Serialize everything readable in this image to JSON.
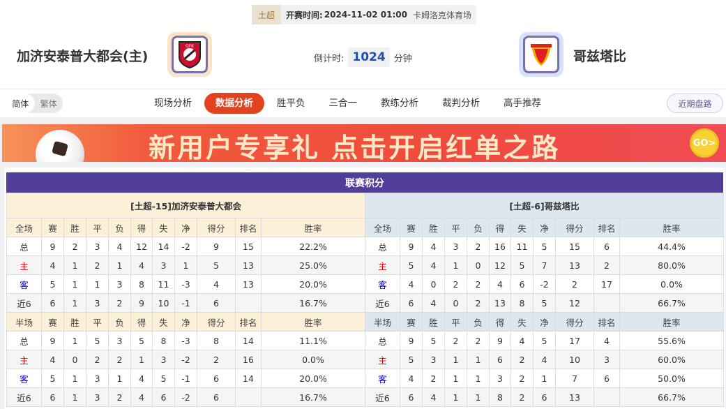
{
  "match": {
    "league": "土超",
    "time_label": "开赛时间:",
    "time": "2024-11-02 01:00",
    "venue": "卡姆洛克体育场"
  },
  "home_team": {
    "name": "加济安泰普大都会(主)",
    "logo": "gaziantep-fk-logo"
  },
  "away_team": {
    "name": "哥兹塔比",
    "logo": "goztepe-logo"
  },
  "countdown": {
    "label": "倒计时:",
    "value": "1024",
    "unit": "分钟"
  },
  "lang": {
    "simplified": "简体",
    "traditional": "繁体"
  },
  "nav": [
    "现场分析",
    "数据分析",
    "胜平负",
    "三合一",
    "教练分析",
    "裁判分析",
    "高手推荐"
  ],
  "nav_active": 1,
  "recent_button": "近期盘路",
  "banner": {
    "text": "新用户专享礼 点击开启红单之路",
    "go": "GO>"
  },
  "standings": {
    "title": "联赛积分",
    "columns_full": [
      "全场",
      "赛",
      "胜",
      "平",
      "负",
      "得",
      "失",
      "净",
      "得分",
      "排名",
      "胜率"
    ],
    "columns_half": [
      "半场",
      "赛",
      "胜",
      "平",
      "负",
      "得",
      "失",
      "净",
      "得分",
      "排名",
      "胜率"
    ],
    "home": {
      "header": "[土超-15]加济安泰普大都会",
      "full": [
        [
          "总",
          "9",
          "2",
          "3",
          "4",
          "12",
          "14",
          "-2",
          "9",
          "15",
          "22.2%"
        ],
        [
          "主",
          "4",
          "1",
          "2",
          "1",
          "4",
          "3",
          "1",
          "5",
          "13",
          "25.0%"
        ],
        [
          "客",
          "5",
          "1",
          "1",
          "3",
          "8",
          "11",
          "-3",
          "4",
          "13",
          "20.0%"
        ],
        [
          "近6",
          "6",
          "1",
          "3",
          "2",
          "9",
          "10",
          "-1",
          "6",
          "",
          "16.7%"
        ]
      ],
      "half": [
        [
          "总",
          "9",
          "1",
          "5",
          "3",
          "5",
          "8",
          "-3",
          "8",
          "14",
          "11.1%"
        ],
        [
          "主",
          "4",
          "0",
          "2",
          "2",
          "1",
          "3",
          "-2",
          "2",
          "16",
          "0.0%"
        ],
        [
          "客",
          "5",
          "1",
          "3",
          "1",
          "4",
          "5",
          "-1",
          "6",
          "14",
          "20.0%"
        ],
        [
          "近6",
          "6",
          "1",
          "3",
          "2",
          "4",
          "6",
          "-2",
          "6",
          "",
          "16.7%"
        ]
      ]
    },
    "away": {
      "header": "[土超-6]哥兹塔比",
      "full": [
        [
          "总",
          "9",
          "4",
          "3",
          "2",
          "16",
          "11",
          "5",
          "15",
          "6",
          "44.4%"
        ],
        [
          "主",
          "5",
          "4",
          "1",
          "0",
          "12",
          "5",
          "7",
          "13",
          "2",
          "80.0%"
        ],
        [
          "客",
          "4",
          "0",
          "2",
          "2",
          "4",
          "6",
          "-2",
          "2",
          "17",
          "0.0%"
        ],
        [
          "近6",
          "6",
          "4",
          "0",
          "2",
          "13",
          "8",
          "5",
          "12",
          "",
          "66.7%"
        ]
      ],
      "half": [
        [
          "总",
          "9",
          "5",
          "2",
          "2",
          "9",
          "4",
          "5",
          "17",
          "4",
          "55.6%"
        ],
        [
          "主",
          "5",
          "3",
          "1",
          "1",
          "6",
          "2",
          "4",
          "10",
          "3",
          "60.0%"
        ],
        [
          "客",
          "4",
          "2",
          "1",
          "1",
          "3",
          "2",
          "1",
          "7",
          "6",
          "50.0%"
        ],
        [
          "近6",
          "6",
          "4",
          "1",
          "1",
          "8",
          "2",
          "6",
          "13",
          "",
          "66.7%"
        ]
      ]
    }
  }
}
